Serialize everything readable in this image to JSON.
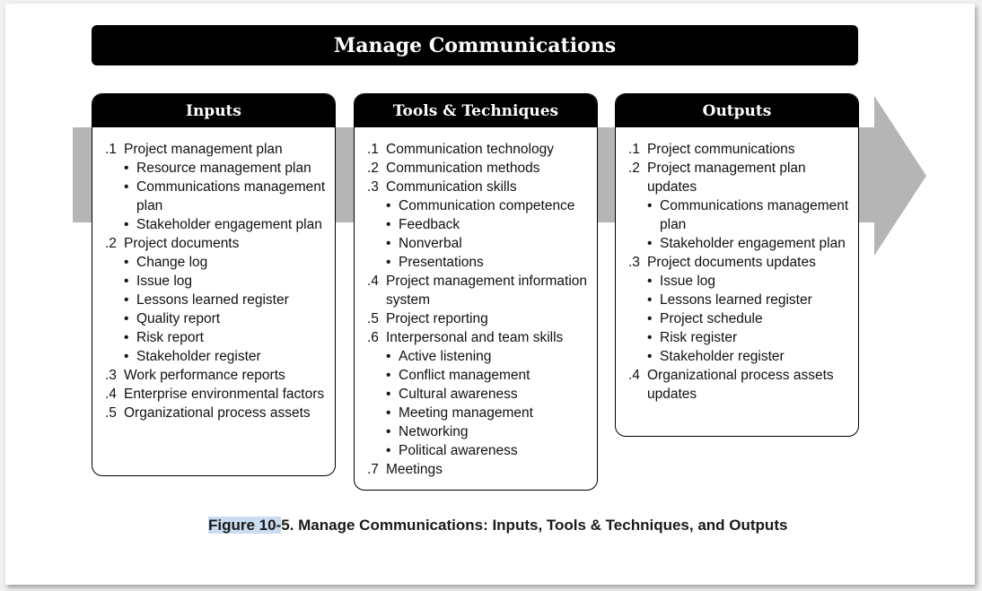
{
  "title": "Manage Communications",
  "columns": [
    {
      "header": "Inputs",
      "items": [
        {
          "num": ".1",
          "text": "Project management plan",
          "subs": [
            "Resource management plan",
            "Communications management plan",
            "Stakeholder engagement plan"
          ]
        },
        {
          "num": ".2",
          "text": "Project documents",
          "subs": [
            "Change log",
            "Issue log",
            "Lessons learned register",
            "Quality report",
            "Risk report",
            "Stakeholder register"
          ]
        },
        {
          "num": ".3",
          "text": "Work performance reports",
          "subs": []
        },
        {
          "num": ".4",
          "text": "Enterprise environmental factors",
          "subs": []
        },
        {
          "num": ".5",
          "text": "Organizational process assets",
          "subs": []
        }
      ]
    },
    {
      "header": "Tools & Techniques",
      "items": [
        {
          "num": ".1",
          "text": "Communication technology",
          "subs": []
        },
        {
          "num": ".2",
          "text": "Communication methods",
          "subs": []
        },
        {
          "num": ".3",
          "text": "Communication skills",
          "subs": [
            "Communication competence",
            "Feedback",
            "Nonverbal",
            "Presentations"
          ]
        },
        {
          "num": ".4",
          "text": "Project management information system",
          "subs": []
        },
        {
          "num": ".5",
          "text": "Project reporting",
          "subs": []
        },
        {
          "num": ".6",
          "text": "Interpersonal and team skills",
          "subs": [
            "Active listening",
            "Conflict management",
            "Cultural awareness",
            "Meeting management",
            "Networking",
            "Political awareness"
          ]
        },
        {
          "num": ".7",
          "text": "Meetings",
          "subs": []
        }
      ]
    },
    {
      "header": "Outputs",
      "items": [
        {
          "num": ".1",
          "text": "Project communications",
          "subs": []
        },
        {
          "num": ".2",
          "text": "Project management plan updates",
          "subs": [
            "Communications management plan",
            "Stakeholder engagement plan"
          ]
        },
        {
          "num": ".3",
          "text": "Project documents updates",
          "subs": [
            "Issue log",
            "Lessons learned register",
            "Project schedule",
            "Risk register",
            "Stakeholder register"
          ]
        },
        {
          "num": ".4",
          "text": "Organizational process assets  updates",
          "subs": []
        }
      ]
    }
  ],
  "caption": {
    "highlight": "Figure 10-",
    "rest": "5. Manage Communications: Inputs, Tools & Techniques, and Outputs"
  },
  "bullet_glyph": "•"
}
